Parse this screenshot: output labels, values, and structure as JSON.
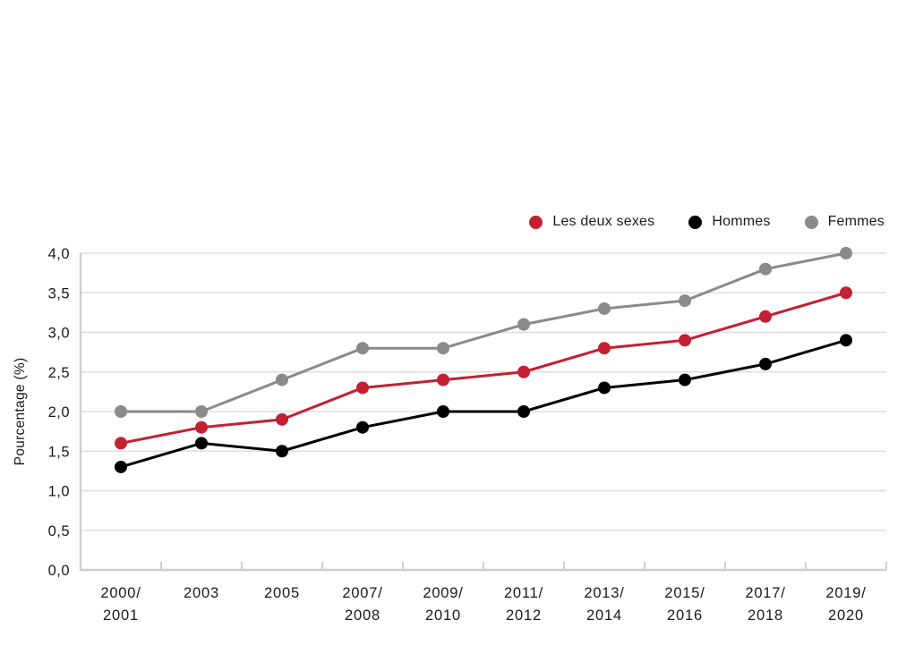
{
  "chart_data": {
    "type": "line",
    "title": "",
    "ylabel": "Pourcentage (%)",
    "xlabel": "",
    "ylim": [
      0.0,
      4.0
    ],
    "ytick_step": 0.5,
    "ytick_labels": [
      "0,0",
      "0,5",
      "1,0",
      "1,5",
      "2,0",
      "2,5",
      "3,0",
      "3,5",
      "4,0"
    ],
    "grid": true,
    "legend_position": "top-right",
    "categories": [
      "2000/2001",
      "2003",
      "2005",
      "2007/2008",
      "2009/2010",
      "2011/2012",
      "2013/2014",
      "2015/2016",
      "2017/2018",
      "2019/2020"
    ],
    "category_label_lines": [
      [
        "2000/",
        "2001"
      ],
      [
        "2003"
      ],
      [
        "2005"
      ],
      [
        "2007/",
        "2008"
      ],
      [
        "2009/",
        "2010"
      ],
      [
        "2011/",
        "2012"
      ],
      [
        "2013/",
        "2014"
      ],
      [
        "2015/",
        "2016"
      ],
      [
        "2017/",
        "2018"
      ],
      [
        "2019/",
        "2020"
      ]
    ],
    "series": [
      {
        "name": "Les deux sexes",
        "color": "#c32033",
        "values": [
          1.6,
          1.8,
          1.9,
          2.3,
          2.4,
          2.5,
          2.8,
          2.9,
          3.2,
          3.5
        ]
      },
      {
        "name": "Hommes",
        "color": "#000000",
        "values": [
          1.3,
          1.6,
          1.5,
          1.8,
          2.0,
          2.0,
          2.3,
          2.4,
          2.6,
          2.9
        ]
      },
      {
        "name": "Femmes",
        "color": "#8a8a8a",
        "values": [
          2.0,
          2.0,
          2.4,
          2.8,
          2.8,
          3.1,
          3.3,
          3.4,
          3.8,
          4.0
        ]
      }
    ]
  },
  "colors": {
    "background": "#ffffff",
    "grid": "#dedede",
    "axis": "#cfcfcf",
    "text": "#1a1a1a"
  }
}
